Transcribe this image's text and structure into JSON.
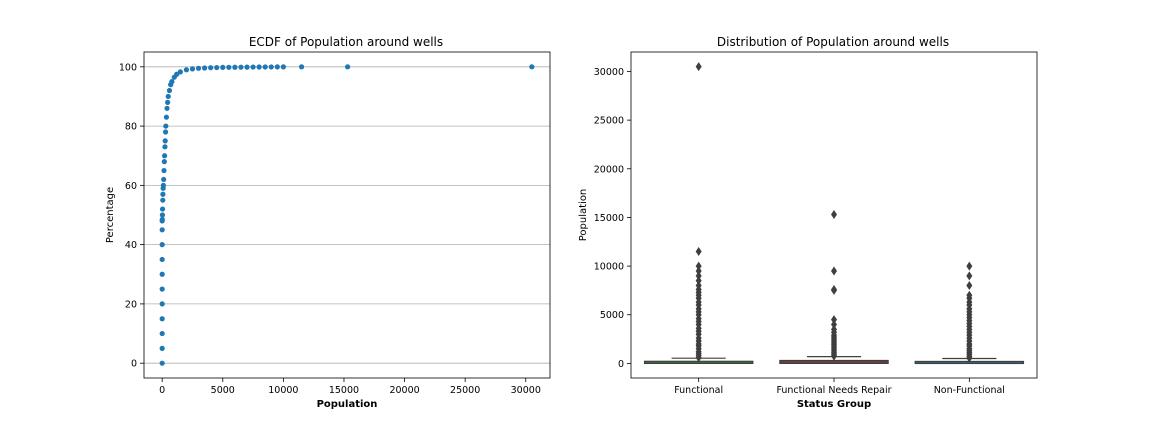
{
  "chart_data": [
    {
      "type": "scatter",
      "title": "ECDF of Population around wells",
      "xlabel": "Population",
      "ylabel": "Percentage",
      "xlim": [
        -1500,
        32000
      ],
      "ylim": [
        -5,
        105
      ],
      "xticks": [
        0,
        5000,
        10000,
        15000,
        20000,
        25000,
        30000
      ],
      "yticks": [
        0,
        20,
        40,
        60,
        80,
        100
      ],
      "grid": "y",
      "color": "#1f77b4",
      "points": [
        [
          0,
          0
        ],
        [
          0,
          5
        ],
        [
          0,
          10
        ],
        [
          0,
          15
        ],
        [
          0,
          20
        ],
        [
          0,
          25
        ],
        [
          0,
          30
        ],
        [
          0,
          35
        ],
        [
          0,
          40
        ],
        [
          0,
          45
        ],
        [
          0,
          48
        ],
        [
          10,
          48.5
        ],
        [
          20,
          50
        ],
        [
          30,
          52
        ],
        [
          50,
          55
        ],
        [
          60,
          57
        ],
        [
          80,
          59
        ],
        [
          100,
          60
        ],
        [
          120,
          62
        ],
        [
          150,
          65
        ],
        [
          180,
          68
        ],
        [
          200,
          70
        ],
        [
          230,
          73
        ],
        [
          250,
          75
        ],
        [
          280,
          78
        ],
        [
          300,
          80
        ],
        [
          350,
          83
        ],
        [
          400,
          86
        ],
        [
          450,
          88
        ],
        [
          500,
          90
        ],
        [
          600,
          92
        ],
        [
          700,
          94
        ],
        [
          800,
          95
        ],
        [
          1000,
          96.5
        ],
        [
          1200,
          97.5
        ],
        [
          1500,
          98.3
        ],
        [
          2000,
          99
        ],
        [
          2500,
          99.3
        ],
        [
          3000,
          99.5
        ],
        [
          3500,
          99.6
        ],
        [
          4000,
          99.7
        ],
        [
          4500,
          99.75
        ],
        [
          5000,
          99.8
        ],
        [
          5500,
          99.83
        ],
        [
          6000,
          99.86
        ],
        [
          6500,
          99.88
        ],
        [
          7000,
          99.9
        ],
        [
          7500,
          99.92
        ],
        [
          8000,
          99.94
        ],
        [
          8500,
          99.95
        ],
        [
          9000,
          99.96
        ],
        [
          9500,
          99.97
        ],
        [
          10000,
          99.98
        ],
        [
          11500,
          99.99
        ],
        [
          15300,
          99.995
        ],
        [
          30500,
          100
        ]
      ]
    },
    {
      "type": "box",
      "title": "Distribution of Population around wells",
      "xlabel": "Status Group",
      "ylabel": "Population",
      "categories": [
        "Functional",
        "Functional Needs Repair",
        "Non-Functional"
      ],
      "ylim": [
        -1500,
        32000
      ],
      "yticks": [
        0,
        5000,
        10000,
        15000,
        20000,
        25000,
        30000
      ],
      "colors": [
        "#3a923a",
        "#c03d3e",
        "#3274a1"
      ],
      "boxes": [
        {
          "q1": 0,
          "median": 25,
          "q3": 215,
          "whisker_low": 0,
          "whisker_high": 537,
          "outliers": [
            600,
            800,
            1000,
            1200,
            1500,
            1800,
            2000,
            2300,
            2600,
            3000,
            3300,
            3600,
            4000,
            4300,
            4600,
            5000,
            5300,
            5600,
            6000,
            6300,
            6700,
            7000,
            7300,
            7600,
            8000,
            8500,
            9000,
            9500,
            10000,
            11500,
            30500
          ]
        },
        {
          "q1": 0,
          "median": 150,
          "q3": 300,
          "whisker_low": 0,
          "whisker_high": 700,
          "outliers": [
            750,
            900,
            1100,
            1300,
            1500,
            1700,
            1900,
            2100,
            2300,
            2500,
            2700,
            2900,
            3200,
            3500,
            4000,
            4500,
            7500,
            7600,
            9500,
            15300
          ]
        },
        {
          "q1": 0,
          "median": 1,
          "q3": 200,
          "whisker_low": 0,
          "whisker_high": 500,
          "outliers": [
            550,
            700,
            900,
            1100,
            1300,
            1500,
            1800,
            2000,
            2300,
            2600,
            2900,
            3200,
            3500,
            3800,
            4100,
            4400,
            4700,
            5000,
            5300,
            5600,
            6000,
            6300,
            6700,
            7000,
            8000,
            9000,
            10000
          ]
        }
      ]
    }
  ]
}
